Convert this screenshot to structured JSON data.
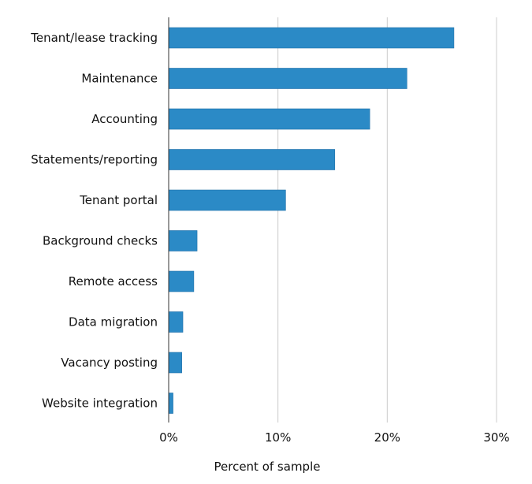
{
  "chart_data": {
    "type": "bar",
    "orientation": "horizontal",
    "categories": [
      "Tenant/lease tracking",
      "Maintenance",
      "Accounting",
      "Statements/reporting",
      "Tenant portal",
      "Background checks",
      "Remote access",
      "Data migration",
      "Vacancy posting",
      "Website integration"
    ],
    "values": [
      26.1,
      21.8,
      18.4,
      15.2,
      10.7,
      2.6,
      2.3,
      1.3,
      1.2,
      0.4
    ],
    "value_unit": "percent",
    "title": "",
    "xlabel": "Percent of sample",
    "ylabel": "",
    "xlim": [
      0,
      30
    ],
    "xticks": [
      0,
      10,
      20,
      30
    ],
    "xtick_labels": [
      "0%",
      "10%",
      "20%",
      "30%"
    ],
    "grid": "vertical",
    "legend": "none",
    "bar_color": "#2b8ac6"
  }
}
